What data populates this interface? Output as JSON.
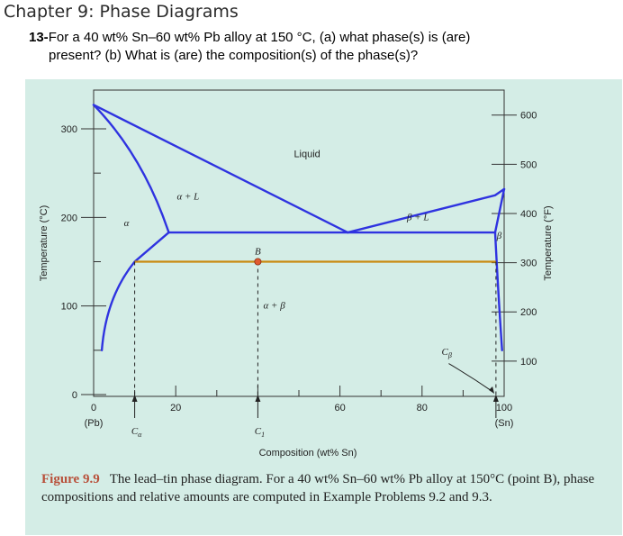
{
  "header": {
    "chapter": "Chapter 9: Phase Diagrams",
    "question_number": "13-",
    "question_line1": "For a 40 wt% Sn–60 wt% Pb alloy at 150 °C, (a) what phase(s) is (are)",
    "question_line2": "present? (b) What is (are) the composition(s) of the phase(s)?"
  },
  "caption": {
    "label": "Figure 9.9",
    "text": "The lead–tin phase diagram. For a 40 wt% Sn–60 wt% Pb alloy at 150°C (point B), phase compositions and relative amounts are computed in Example Problems 9.2 and 9.3."
  },
  "chart_data": {
    "type": "line",
    "xlabel": "Composition (wt% Sn)",
    "ylabel": "Temperature (°C)",
    "ylabel_right": "Temperature (°F)",
    "xlim": [
      0,
      100
    ],
    "ylim": [
      0,
      340
    ],
    "x_ticks": [
      0,
      20,
      60,
      80,
      100
    ],
    "x_tick_labels": [
      "0",
      "20",
      "60",
      "80",
      "100"
    ],
    "x_end_labels": [
      "(Pb)",
      "(Sn)"
    ],
    "y_ticks": [
      0,
      100,
      200,
      300
    ],
    "y_tick_labels": [
      "0",
      "100",
      "200",
      "300"
    ],
    "y_right_ticks_f": [
      100,
      200,
      300,
      400,
      500,
      600
    ],
    "y_right_tick_labels": [
      "100",
      "200",
      "300",
      "400",
      "500",
      "600"
    ],
    "grid": false,
    "series": [
      {
        "role": "liquidus-left",
        "x": [
          0,
          61.9
        ],
        "y": [
          327,
          183
        ]
      },
      {
        "role": "liquidus-right",
        "x": [
          61.9,
          97.8,
          100
        ],
        "y": [
          183,
          225,
          232
        ]
      },
      {
        "role": "solidus-alpha",
        "x": [
          0,
          18.3
        ],
        "y": [
          327,
          183
        ]
      },
      {
        "role": "eutectic-isotherm",
        "x": [
          18.3,
          97.8
        ],
        "y": [
          183,
          183
        ]
      },
      {
        "role": "solvus-alpha",
        "x": [
          18.3,
          10,
          4,
          2
        ],
        "y": [
          183,
          150,
          100,
          50
        ]
      },
      {
        "role": "solidus-beta",
        "x": [
          97.8,
          100
        ],
        "y": [
          183,
          232
        ]
      },
      {
        "role": "solvus-beta",
        "x": [
          97.8,
          99,
          99.5
        ],
        "y": [
          183,
          100,
          50
        ]
      },
      {
        "role": "tie-line-150C",
        "x": [
          10,
          98
        ],
        "y": [
          150,
          150
        ]
      }
    ],
    "point": {
      "label": "B",
      "x": 40,
      "y": 150
    },
    "region_labels": [
      {
        "text": "Liquid",
        "x": 52,
        "y": 268
      },
      {
        "text": "α + L",
        "x": 23,
        "y": 220
      },
      {
        "text": "α",
        "x": 8,
        "y": 190
      },
      {
        "text": "β + L",
        "x": 79,
        "y": 197
      },
      {
        "text": "β",
        "x": 98.8,
        "y": 176
      },
      {
        "text": "α + β",
        "x": 44,
        "y": 97
      },
      {
        "text": "Cβ",
        "x": 86,
        "y": 45
      }
    ],
    "composition_markers": [
      {
        "text": "Cα",
        "x": 10
      },
      {
        "text": "C1",
        "x": 40
      },
      {
        "text": "",
        "x": 98
      }
    ],
    "colors": {
      "phase_lines": "#2f33e0",
      "tie_line": "#c98a10",
      "point_b": "#e05a30",
      "background": "#d4ede6"
    }
  }
}
